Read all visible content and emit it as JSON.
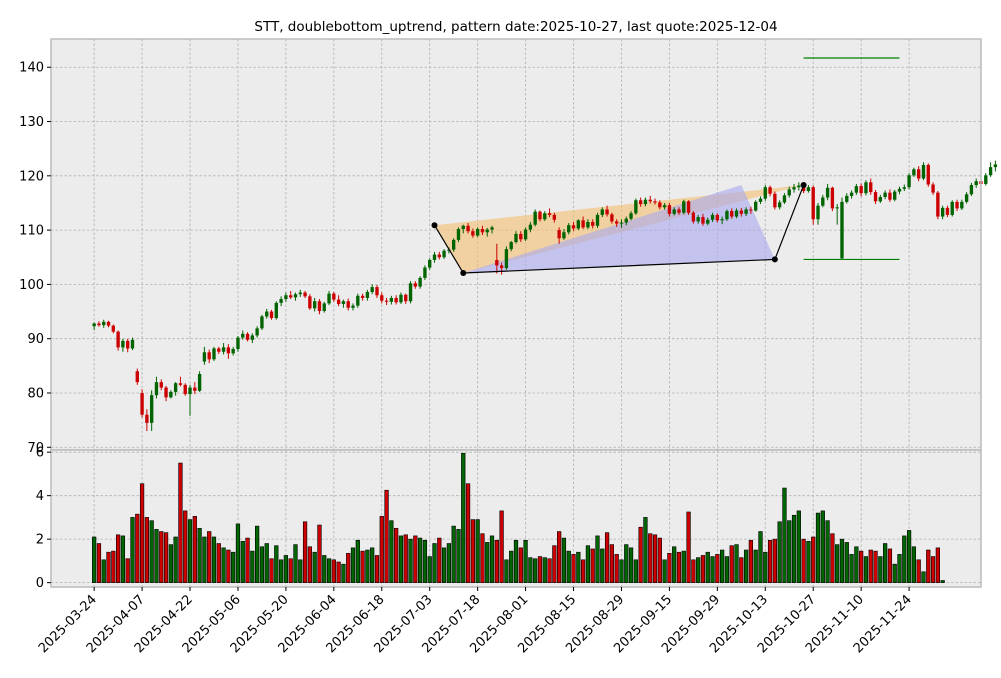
{
  "chart_data": {
    "type": "candlestick",
    "title": "STT, doublebottom_uptrend, pattern date:2025-10-27, last quote:2025-12-04",
    "colors": {
      "up": "#006400",
      "down": "#cc0000",
      "pattern_peak": "#f5c072",
      "pattern_base": "#a8a8f0",
      "level": "#008000",
      "panel_bg": "#ececec"
    },
    "price_axis": {
      "ticks": [
        70,
        80,
        90,
        100,
        110,
        120,
        130,
        140
      ],
      "ylim": [
        69.5,
        145.2
      ]
    },
    "volume_axis": {
      "ticks": [
        0,
        2,
        4,
        6
      ],
      "ylim": [
        -0.2,
        6.1
      ]
    },
    "date_ticks": [
      "2025-03-24",
      "2025-04-07",
      "2025-04-22",
      "2025-05-06",
      "2025-05-20",
      "2025-06-04",
      "2025-06-18",
      "2025-07-03",
      "2025-07-18",
      "2025-08-01",
      "2025-08-15",
      "2025-08-29",
      "2025-09-15",
      "2025-09-29",
      "2025-10-13",
      "2025-10-27",
      "2025-11-10",
      "2025-11-24"
    ],
    "date_tick_index": [
      0,
      10,
      20,
      30,
      40,
      50,
      60,
      70,
      80,
      90,
      100,
      110,
      120,
      130,
      140,
      150,
      160,
      170
    ],
    "index_range": [
      -9,
      185
    ],
    "candles": [
      [
        92.3,
        93.0,
        91.6,
        92.8
      ],
      [
        92.8,
        93.2,
        92.2,
        92.5
      ],
      [
        92.5,
        93.5,
        92.0,
        93.1
      ],
      [
        93.1,
        93.3,
        92.1,
        92.4
      ],
      [
        92.4,
        92.6,
        91.0,
        91.3
      ],
      [
        91.3,
        91.5,
        87.8,
        88.4
      ],
      [
        88.4,
        90.0,
        87.6,
        89.6
      ],
      [
        89.6,
        90.0,
        87.5,
        88.2
      ],
      [
        88.2,
        90.2,
        87.9,
        89.8
      ],
      [
        84.0,
        84.5,
        81.5,
        82.0
      ],
      [
        80.0,
        80.7,
        75.5,
        76.0
      ],
      [
        76.0,
        77.0,
        73.0,
        74.5
      ],
      [
        74.5,
        80.5,
        73.0,
        79.6
      ],
      [
        79.6,
        83.0,
        79.0,
        82.0
      ],
      [
        82.0,
        82.5,
        80.5,
        81.0
      ],
      [
        81.0,
        81.3,
        78.5,
        79.2
      ],
      [
        79.2,
        80.5,
        79.0,
        80.2
      ],
      [
        80.2,
        82.0,
        79.5,
        81.8
      ],
      [
        81.8,
        83.0,
        81.2,
        81.5
      ],
      [
        81.5,
        81.8,
        79.5,
        79.8
      ],
      [
        79.8,
        81.5,
        75.8,
        81.0
      ],
      [
        81.0,
        82.0,
        79.8,
        80.4
      ],
      [
        80.4,
        84.0,
        80.2,
        83.5
      ],
      [
        85.8,
        88.5,
        85.2,
        87.5
      ],
      [
        87.5,
        88.0,
        85.5,
        86.2
      ],
      [
        86.2,
        88.5,
        85.9,
        88.2
      ],
      [
        88.2,
        88.5,
        87.2,
        87.6
      ],
      [
        87.6,
        89.2,
        87.1,
        88.4
      ],
      [
        88.4,
        89.0,
        86.3,
        87.3
      ],
      [
        87.3,
        88.5,
        86.9,
        88.1
      ],
      [
        88.1,
        90.5,
        87.6,
        90.2
      ],
      [
        90.2,
        91.5,
        89.8,
        90.9
      ],
      [
        90.9,
        91.2,
        89.5,
        89.8
      ],
      [
        89.8,
        91.0,
        89.2,
        90.6
      ],
      [
        90.6,
        92.3,
        90.2,
        91.9
      ],
      [
        91.9,
        94.4,
        91.6,
        94.1
      ],
      [
        94.1,
        95.5,
        93.7,
        95.0
      ],
      [
        95.0,
        95.3,
        93.5,
        93.8
      ],
      [
        93.8,
        96.9,
        93.5,
        96.6
      ],
      [
        96.6,
        97.8,
        96.0,
        97.3
      ],
      [
        97.3,
        98.5,
        96.8,
        98.0
      ],
      [
        98.0,
        98.8,
        97.3,
        97.6
      ],
      [
        97.6,
        98.5,
        97.0,
        98.2
      ],
      [
        98.2,
        99.0,
        97.7,
        98.5
      ],
      [
        98.5,
        98.8,
        97.5,
        97.8
      ],
      [
        97.8,
        98.2,
        95.3,
        95.6
      ],
      [
        95.6,
        97.5,
        95.0,
        96.9
      ],
      [
        96.9,
        97.3,
        94.5,
        95.1
      ],
      [
        95.1,
        96.8,
        94.8,
        96.5
      ],
      [
        96.5,
        98.8,
        96.2,
        98.3
      ],
      [
        98.3,
        98.6,
        96.8,
        97.2
      ],
      [
        97.2,
        98.0,
        96.0,
        96.4
      ],
      [
        96.4,
        97.2,
        95.7,
        96.9
      ],
      [
        96.9,
        97.4,
        95.2,
        95.7
      ],
      [
        95.7,
        96.5,
        95.2,
        96.1
      ],
      [
        96.1,
        98.3,
        95.7,
        97.9
      ],
      [
        97.9,
        98.3,
        97.0,
        97.5
      ],
      [
        97.5,
        99.0,
        97.0,
        98.6
      ],
      [
        98.6,
        100.0,
        98.2,
        99.5
      ],
      [
        99.5,
        99.9,
        97.5,
        98.0
      ],
      [
        98.0,
        98.5,
        96.5,
        97.0
      ],
      [
        97.0,
        97.5,
        96.2,
        96.8
      ],
      [
        96.8,
        97.9,
        96.3,
        97.5
      ],
      [
        97.5,
        98.0,
        96.3,
        96.7
      ],
      [
        96.7,
        98.5,
        96.4,
        98.1
      ],
      [
        98.1,
        98.3,
        96.4,
        96.9
      ],
      [
        96.9,
        100.6,
        96.5,
        100.2
      ],
      [
        100.2,
        100.6,
        99.2,
        99.6
      ],
      [
        99.6,
        101.5,
        99.2,
        101.2
      ],
      [
        101.2,
        103.5,
        100.8,
        103.1
      ],
      [
        103.1,
        104.8,
        102.7,
        104.5
      ],
      [
        104.5,
        106.0,
        104.0,
        105.5
      ],
      [
        105.5,
        106.0,
        104.6,
        105.0
      ],
      [
        105.0,
        106.5,
        104.7,
        106.2
      ],
      [
        106.2,
        106.8,
        105.7,
        106.4
      ],
      [
        106.4,
        108.5,
        106.0,
        108.2
      ],
      [
        108.2,
        110.5,
        107.8,
        110.2
      ],
      [
        110.2,
        111.0,
        109.4,
        110.8
      ],
      [
        110.8,
        111.3,
        109.4,
        109.8
      ],
      [
        109.8,
        110.3,
        108.6,
        109.0
      ],
      [
        109.0,
        110.5,
        108.7,
        110.2
      ],
      [
        110.2,
        110.8,
        109.1,
        109.6
      ],
      [
        109.6,
        110.4,
        108.8,
        110.1
      ],
      [
        110.1,
        110.8,
        109.4,
        110.5
      ],
      [
        104.5,
        107.5,
        102.0,
        103.5
      ],
      [
        103.5,
        104.0,
        101.8,
        103.0
      ],
      [
        103.0,
        107.0,
        102.7,
        106.5
      ],
      [
        106.5,
        108.0,
        106.1,
        107.8
      ],
      [
        107.8,
        109.8,
        107.5,
        109.3
      ],
      [
        109.3,
        109.8,
        107.8,
        108.3
      ],
      [
        108.3,
        110.5,
        108.0,
        110.1
      ],
      [
        110.1,
        111.5,
        109.6,
        111.0
      ],
      [
        111.0,
        113.8,
        110.7,
        113.4
      ],
      [
        113.4,
        113.6,
        111.6,
        112.0
      ],
      [
        112.0,
        113.5,
        111.7,
        113.1
      ],
      [
        113.1,
        114.0,
        112.4,
        112.8
      ],
      [
        112.8,
        113.2,
        111.4,
        111.9
      ],
      [
        110.0,
        110.5,
        107.5,
        108.5
      ],
      [
        108.5,
        110.2,
        108.2,
        109.6
      ],
      [
        109.6,
        111.3,
        109.2,
        110.9
      ],
      [
        110.9,
        111.5,
        109.8,
        110.3
      ],
      [
        110.3,
        112.0,
        110.0,
        111.8
      ],
      [
        111.8,
        112.5,
        110.2,
        110.5
      ],
      [
        110.5,
        112.0,
        110.2,
        111.5
      ],
      [
        111.5,
        112.0,
        110.3,
        110.8
      ],
      [
        110.8,
        113.2,
        110.4,
        112.8
      ],
      [
        112.8,
        114.2,
        112.4,
        113.8
      ],
      [
        113.8,
        114.5,
        112.5,
        112.9
      ],
      [
        112.9,
        113.2,
        111.2,
        111.6
      ],
      [
        111.6,
        112.0,
        110.6,
        111.2
      ],
      [
        111.2,
        112.0,
        110.4,
        111.4
      ],
      [
        111.4,
        112.5,
        110.9,
        112.1
      ],
      [
        112.1,
        113.5,
        111.8,
        113.1
      ],
      [
        113.1,
        115.8,
        112.8,
        115.5
      ],
      [
        115.5,
        116.0,
        114.3,
        114.8
      ],
      [
        114.8,
        116.0,
        114.4,
        115.6
      ],
      [
        115.6,
        116.3,
        114.9,
        115.3
      ],
      [
        115.3,
        115.8,
        114.7,
        115.1
      ],
      [
        115.1,
        115.5,
        113.8,
        114.2
      ],
      [
        114.2,
        115.0,
        113.8,
        114.6
      ],
      [
        114.6,
        115.0,
        112.5,
        113.0
      ],
      [
        113.0,
        114.2,
        112.7,
        113.8
      ],
      [
        113.8,
        114.2,
        112.8,
        113.2
      ],
      [
        113.2,
        115.6,
        112.9,
        115.3
      ],
      [
        115.3,
        115.5,
        112.8,
        113.2
      ],
      [
        113.2,
        113.5,
        111.2,
        111.6
      ],
      [
        111.6,
        112.8,
        111.2,
        112.4
      ],
      [
        112.4,
        113.0,
        110.8,
        111.2
      ],
      [
        111.2,
        112.3,
        110.9,
        111.9
      ],
      [
        111.9,
        113.2,
        111.5,
        112.8
      ],
      [
        112.8,
        113.1,
        111.4,
        111.8
      ],
      [
        111.8,
        112.5,
        111.1,
        112.0
      ],
      [
        112.0,
        113.8,
        111.7,
        113.5
      ],
      [
        113.5,
        114.0,
        112.1,
        112.5
      ],
      [
        112.5,
        114.0,
        112.2,
        113.6
      ],
      [
        113.6,
        114.1,
        112.5,
        113.0
      ],
      [
        113.0,
        114.2,
        112.6,
        113.8
      ],
      [
        113.8,
        114.3,
        113.0,
        113.6
      ],
      [
        113.6,
        115.5,
        113.4,
        115.2
      ],
      [
        115.2,
        116.2,
        114.8,
        115.8
      ],
      [
        115.8,
        118.3,
        115.4,
        117.9
      ],
      [
        117.9,
        118.2,
        116.2,
        116.7
      ],
      [
        116.7,
        117.1,
        113.8,
        114.2
      ],
      [
        114.2,
        115.5,
        113.8,
        115.1
      ],
      [
        115.1,
        116.8,
        114.8,
        116.4
      ],
      [
        116.4,
        118.0,
        116.0,
        117.5
      ],
      [
        117.5,
        118.5,
        116.9,
        117.9
      ],
      [
        117.9,
        118.8,
        117.3,
        118.2
      ],
      [
        118.2,
        118.5,
        116.8,
        117.2
      ],
      [
        117.2,
        118.3,
        116.9,
        117.9
      ],
      [
        117.9,
        118.2,
        111.0,
        112.0
      ],
      [
        112.0,
        115.0,
        111.0,
        114.5
      ],
      [
        114.5,
        116.5,
        114.2,
        116.0
      ],
      [
        116.0,
        118.5,
        115.5,
        117.8
      ],
      [
        117.8,
        118.0,
        113.5,
        114.0
      ],
      [
        114.0,
        114.8,
        111.0,
        114.2
      ],
      [
        104.8,
        116.0,
        104.6,
        115.2
      ],
      [
        115.2,
        116.8,
        114.9,
        116.3
      ],
      [
        116.3,
        117.3,
        115.8,
        116.9
      ],
      [
        116.9,
        118.5,
        116.5,
        118.1
      ],
      [
        118.1,
        118.6,
        116.2,
        116.8
      ],
      [
        116.8,
        119.2,
        116.4,
        118.8
      ],
      [
        118.8,
        119.5,
        116.5,
        117.0
      ],
      [
        117.0,
        117.4,
        114.8,
        115.3
      ],
      [
        115.3,
        116.5,
        115.0,
        116.1
      ],
      [
        116.1,
        117.3,
        115.7,
        116.9
      ],
      [
        116.9,
        117.5,
        115.2,
        115.6
      ],
      [
        115.6,
        117.4,
        115.3,
        117.1
      ],
      [
        117.1,
        118.0,
        116.6,
        117.6
      ],
      [
        117.6,
        118.4,
        117.2,
        117.9
      ],
      [
        117.9,
        120.5,
        117.5,
        120.1
      ],
      [
        120.1,
        121.5,
        119.8,
        121.2
      ],
      [
        121.2,
        121.8,
        119.0,
        119.5
      ],
      [
        119.5,
        122.5,
        119.2,
        122.0
      ],
      [
        122.0,
        122.3,
        118.0,
        118.4
      ],
      [
        118.4,
        118.8,
        116.5,
        116.9
      ],
      [
        116.9,
        117.2,
        112.0,
        112.5
      ],
      [
        112.5,
        114.5,
        112.0,
        114.1
      ],
      [
        114.1,
        114.5,
        112.4,
        112.8
      ],
      [
        112.8,
        115.5,
        112.5,
        115.2
      ],
      [
        115.2,
        115.6,
        113.5,
        114.0
      ],
      [
        114.0,
        115.6,
        113.7,
        115.2
      ],
      [
        115.2,
        117.0,
        114.9,
        116.6
      ],
      [
        116.6,
        118.7,
        116.3,
        118.3
      ],
      [
        118.3,
        119.5,
        117.8,
        119.0
      ],
      [
        119.0,
        119.5,
        118.0,
        118.5
      ],
      [
        118.5,
        120.5,
        118.2,
        120.1
      ],
      [
        120.1,
        122.5,
        119.8,
        121.6
      ],
      [
        121.6,
        122.8,
        120.8,
        122.1
      ]
    ],
    "volumes": [
      2.1,
      1.8,
      1.05,
      1.4,
      1.45,
      2.2,
      2.15,
      1.1,
      3.0,
      3.15,
      4.55,
      3.0,
      2.85,
      2.45,
      2.35,
      2.3,
      1.75,
      2.1,
      5.5,
      3.3,
      2.9,
      3.05,
      2.5,
      2.1,
      2.35,
      2.1,
      1.8,
      1.6,
      1.5,
      1.4,
      2.7,
      1.9,
      2.05,
      1.45,
      2.6,
      1.65,
      1.8,
      1.1,
      1.7,
      1.05,
      1.25,
      1.1,
      1.75,
      1.05,
      2.8,
      1.65,
      1.4,
      2.65,
      1.25,
      1.1,
      1.05,
      0.95,
      0.85,
      1.35,
      1.6,
      1.95,
      1.45,
      1.5,
      1.6,
      1.25,
      3.05,
      4.25,
      2.85,
      2.5,
      2.15,
      2.2,
      2.0,
      2.15,
      2.05,
      1.95,
      1.2,
      1.8,
      2.05,
      1.6,
      1.8,
      2.6,
      2.45,
      5.95,
      4.55,
      2.9,
      2.9,
      2.25,
      1.85,
      2.15,
      1.95,
      3.3,
      1.05,
      1.45,
      1.95,
      1.6,
      1.95,
      1.15,
      1.1,
      1.2,
      1.15,
      1.1,
      1.7,
      2.35,
      2.05,
      1.45,
      1.3,
      1.4,
      1.05,
      1.7,
      1.55,
      2.15,
      1.55,
      2.3,
      1.75,
      1.3,
      1.05,
      1.75,
      1.6,
      1.05,
      2.55,
      3.0,
      2.25,
      2.2,
      2.05,
      1.05,
      1.35,
      1.65,
      1.4,
      1.45,
      3.25,
      1.05,
      1.15,
      1.25,
      1.4,
      1.2,
      1.3,
      1.5,
      1.2,
      1.7,
      1.75,
      1.15,
      1.5,
      1.95,
      1.5,
      2.35,
      1.4,
      1.95,
      2.0,
      2.8,
      4.35,
      2.85,
      3.1,
      3.3,
      2.0,
      1.9,
      2.1,
      3.2,
      3.3,
      2.85,
      2.25,
      1.75,
      2.0,
      1.85,
      1.3,
      1.65,
      1.45,
      1.2,
      1.5,
      1.45,
      1.2,
      1.8,
      1.55,
      0.85,
      1.3,
      2.15,
      2.4,
      1.65,
      1.05,
      0.5,
      1.5,
      1.2,
      1.6,
      0.1
    ],
    "pattern": {
      "points_index": [
        71,
        77,
        142,
        148
      ],
      "points_price": [
        110.9,
        102.1,
        104.6,
        118.3
      ],
      "resistance": 118.3
    },
    "levels": [
      {
        "price": 141.7,
        "index_range": [
          148,
          168
        ]
      },
      {
        "price": 104.6,
        "index_range": [
          148,
          168
        ]
      }
    ]
  }
}
